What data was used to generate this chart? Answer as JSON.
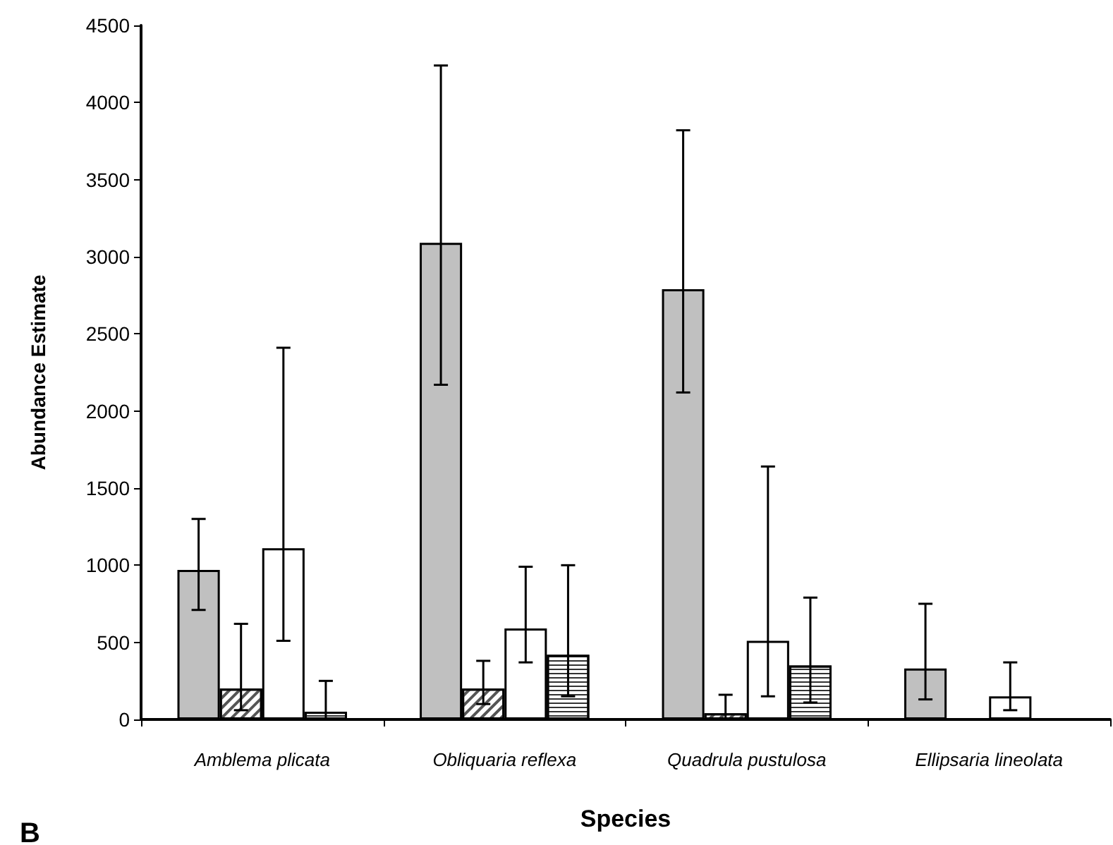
{
  "chart_data": {
    "type": "bar",
    "xlabel": "Species",
    "ylabel": "Abundance Estimate",
    "categories": [
      "Amblema plicata",
      "Obliquaria reflexa",
      "Quadrula pustulosa",
      "Ellipsaria lineolata"
    ],
    "series": [
      {
        "color": "#c0c0c0",
        "values": [
          970,
          3090,
          2790,
          330
        ],
        "errors": [
          [
            710,
            1300
          ],
          [
            2170,
            4240
          ],
          [
            2120,
            3820
          ],
          [
            130,
            750
          ]
        ]
      },
      {
        "color": "#ffffff",
        "values": [
          200,
          200,
          40,
          null
        ],
        "errors": [
          [
            60,
            620
          ],
          [
            100,
            380
          ],
          [
            0,
            160
          ],
          null
        ]
      },
      {
        "color": "#ffffff",
        "values": [
          1110,
          590,
          510,
          150
        ],
        "errors": [
          [
            510,
            2410
          ],
          [
            370,
            990
          ],
          [
            150,
            1640
          ],
          [
            60,
            370
          ]
        ]
      },
      {
        "color": "#ffffff",
        "values": [
          50,
          420,
          350,
          null
        ],
        "errors": [
          [
            0,
            250
          ],
          [
            150,
            1000
          ],
          [
            110,
            790
          ],
          null
        ]
      }
    ],
    "ylim": [
      0,
      4500
    ],
    "yticks": [
      0,
      500,
      1000,
      1500,
      2000,
      2500,
      3000,
      3500,
      4000,
      4500
    ],
    "grid": false,
    "annotations": [
      "B"
    ]
  }
}
